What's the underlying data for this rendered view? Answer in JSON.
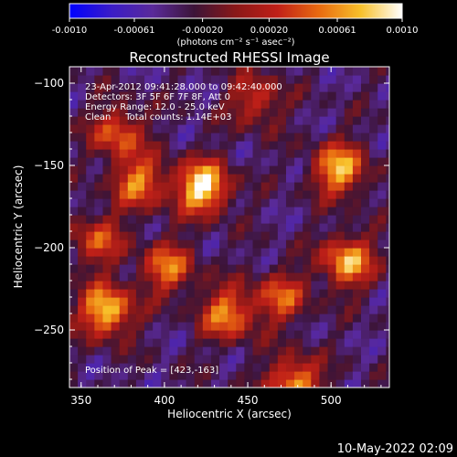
{
  "colors": {
    "background": "#000000",
    "text": "#ffffff",
    "colormap": [
      "#0000ff",
      "#3a1cc8",
      "#5a2a9a",
      "#3c1438",
      "#8a1818",
      "#c02018",
      "#e86a10",
      "#f8c02a",
      "#ffffff"
    ]
  },
  "colorbar": {
    "tick_labels": [
      "-0.0010",
      "-0.00061",
      "-0.00020",
      "0.00020",
      "0.00061",
      "0.0010"
    ],
    "tick_values": [
      -0.001,
      -0.00061,
      -0.0002,
      0.0002,
      0.00061,
      0.001
    ],
    "unit_label": "(photons cm⁻² s⁻¹ asec⁻²)"
  },
  "chart_data": {
    "type": "heatmap",
    "title": "Reconstructed RHESSI Image",
    "xlabel": "Heliocentric X (arcsec)",
    "ylabel": "Heliocentric Y (arcsec)",
    "xlim": [
      343,
      535
    ],
    "ylim": [
      -285,
      -90
    ],
    "xticks": [
      350,
      400,
      450,
      500
    ],
    "yticks": [
      -100,
      -150,
      -200,
      -250
    ],
    "color_range": [
      -0.001,
      0.001
    ],
    "grid": false,
    "annotations": [
      "23-Apr-2012 09:41:28.000 to 09:42:40.000",
      "Detectors: 3F 5F 6F 7F 8F, Att 0",
      "Energy Range: 12.0 - 25.0 keV",
      "Clean     Total counts: 1.14E+03"
    ],
    "peak_label": "Position of Peak = [423,-163]",
    "peak": {
      "x": 423,
      "y": -163
    },
    "sources": [
      {
        "x": 423,
        "y": -163,
        "value": 0.001
      },
      {
        "x": 365,
        "y": -238,
        "value": 0.00085
      },
      {
        "x": 505,
        "y": -152,
        "value": 0.00075
      },
      {
        "x": 510,
        "y": -208,
        "value": 0.00072
      },
      {
        "x": 478,
        "y": -282,
        "value": 0.00068
      },
      {
        "x": 438,
        "y": -240,
        "value": 0.0006
      },
      {
        "x": 385,
        "y": -160,
        "value": 0.00055
      },
      {
        "x": 402,
        "y": -212,
        "value": 0.0005
      },
      {
        "x": 372,
        "y": -130,
        "value": 0.00045
      },
      {
        "x": 470,
        "y": -230,
        "value": 0.0004
      },
      {
        "x": 455,
        "y": -110,
        "value": 0.0003
      },
      {
        "x": 360,
        "y": -195,
        "value": 0.00035
      }
    ]
  },
  "timestamp": "10-May-2022 02:09"
}
